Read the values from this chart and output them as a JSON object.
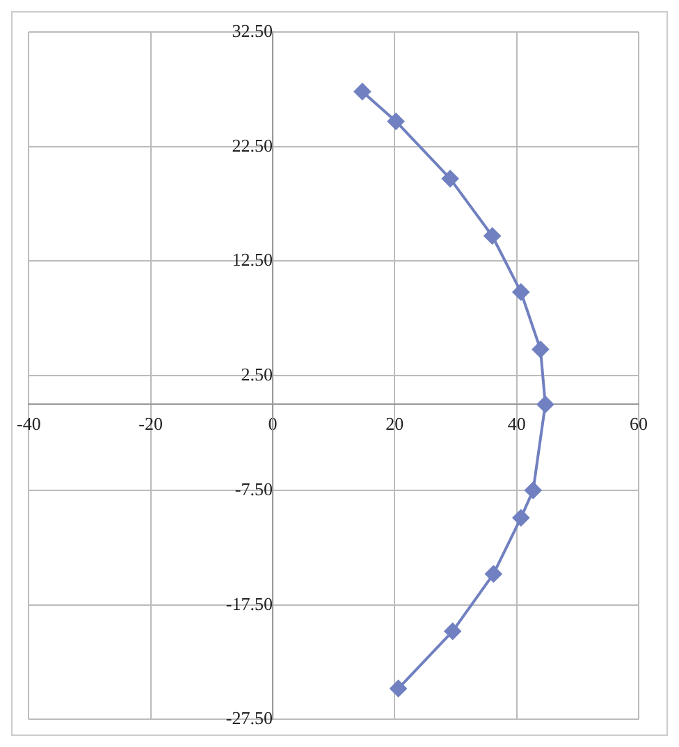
{
  "chart_data": {
    "type": "scatter",
    "marker": "diamond",
    "grid": true,
    "xlim": [
      -40,
      60
    ],
    "xticks": [
      -40,
      -20,
      0,
      20,
      40,
      60
    ],
    "ylim": [
      -27.5,
      32.5
    ],
    "yticks": [
      {
        "value": -27.5,
        "label": "-27.50"
      },
      {
        "value": -17.5,
        "label": "-17.50"
      },
      {
        "value": -7.5,
        "label": "-7.50"
      },
      {
        "value": 2.5,
        "label": "2.50"
      },
      {
        "value": 12.5,
        "label": "12.50"
      },
      {
        "value": 22.5,
        "label": "22.50"
      },
      {
        "value": 32.5,
        "label": "32.50"
      }
    ],
    "series": [
      {
        "type": "line",
        "color": "#7080c0",
        "x": [
          14.7,
          20.2,
          29.1,
          36.0,
          40.7,
          43.9,
          44.7,
          42.7,
          40.7,
          36.2,
          29.5,
          20.6
        ],
        "values": [
          27.3,
          24.7,
          19.7,
          14.7,
          9.8,
          4.8,
          0,
          -7.5,
          -9.9,
          -14.8,
          -19.8,
          -24.8
        ]
      }
    ]
  }
}
